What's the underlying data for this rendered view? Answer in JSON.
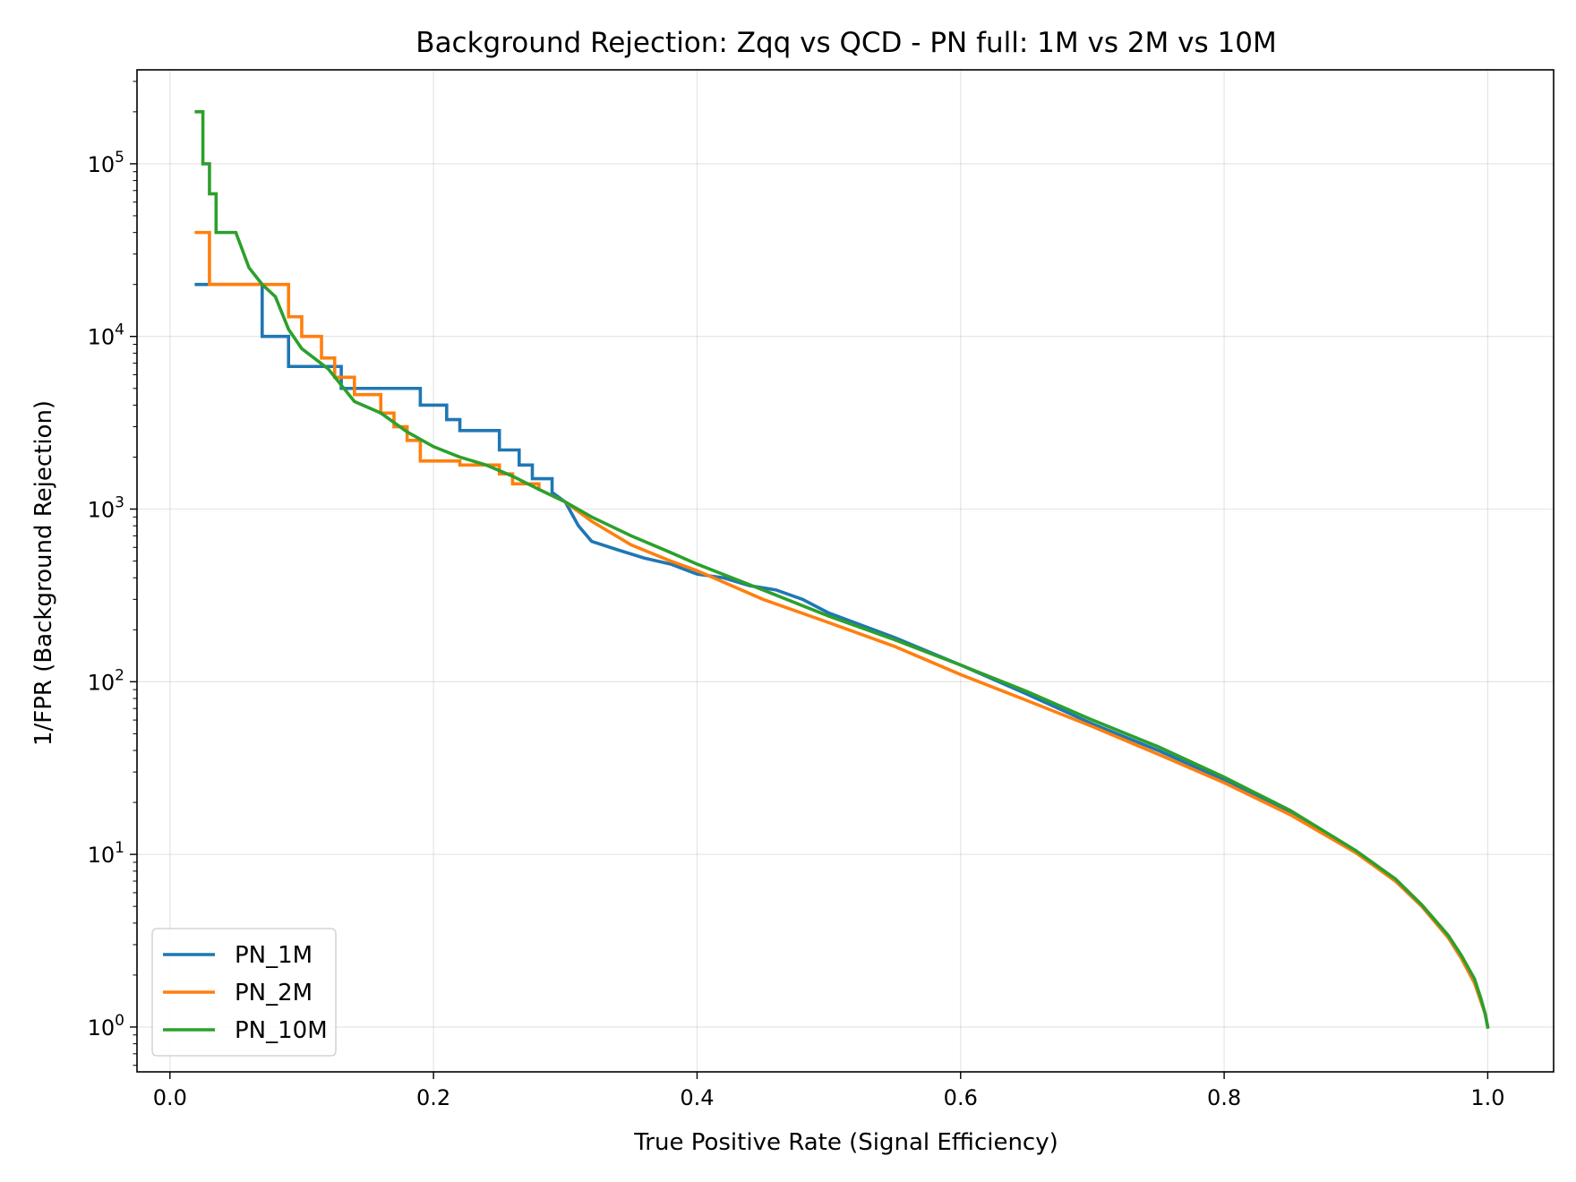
{
  "chart_data": {
    "type": "line",
    "title": "Background Rejection: Zqq vs QCD - PN full: 1M vs 2M vs 10M",
    "xlabel": "True Positive Rate (Signal Efficiency)",
    "ylabel": "1/FPR (Background Rejection)",
    "xlim": [
      -0.025,
      1.05
    ],
    "ylim": [
      0.55,
      350000
    ],
    "yscale": "log",
    "grid": true,
    "legend_position": "lower-left",
    "x_ticks": [
      0.0,
      0.2,
      0.4,
      0.6,
      0.8,
      1.0
    ],
    "x_tick_labels": [
      "0.0",
      "0.2",
      "0.4",
      "0.6",
      "0.8",
      "1.0"
    ],
    "y_ticks": [
      1,
      10,
      100,
      1000,
      10000,
      100000
    ],
    "y_tick_labels": [
      {
        "base": "10",
        "exp": "0"
      },
      {
        "base": "10",
        "exp": "1"
      },
      {
        "base": "10",
        "exp": "2"
      },
      {
        "base": "10",
        "exp": "3"
      },
      {
        "base": "10",
        "exp": "4"
      },
      {
        "base": "10",
        "exp": "5"
      }
    ],
    "series": [
      {
        "name": "PN_1M",
        "color": "#1f77b4",
        "x": [
          0.02,
          0.07,
          0.07,
          0.09,
          0.09,
          0.13,
          0.13,
          0.19,
          0.19,
          0.21,
          0.21,
          0.22,
          0.22,
          0.25,
          0.25,
          0.265,
          0.265,
          0.275,
          0.275,
          0.29,
          0.29,
          0.3,
          0.31,
          0.32,
          0.34,
          0.36,
          0.38,
          0.4,
          0.42,
          0.44,
          0.46,
          0.48,
          0.5,
          0.55,
          0.6,
          0.65,
          0.7,
          0.75,
          0.8,
          0.85,
          0.9,
          0.93,
          0.95,
          0.97,
          0.98,
          0.99,
          0.995,
          0.998,
          1.0
        ],
        "y": [
          20000,
          20000,
          10000,
          10000,
          6700,
          6700,
          5000,
          5000,
          4000,
          4000,
          3300,
          3300,
          2850,
          2850,
          2200,
          2200,
          1800,
          1800,
          1500,
          1500,
          1250,
          1100,
          800,
          650,
          580,
          520,
          480,
          420,
          400,
          360,
          340,
          300,
          250,
          180,
          125,
          85,
          57,
          40,
          27,
          17.5,
          10.3,
          7,
          5,
          3.3,
          2.5,
          1.8,
          1.4,
          1.2,
          1.0
        ]
      },
      {
        "name": "PN_2M",
        "color": "#ff7f0e",
        "x": [
          0.02,
          0.03,
          0.03,
          0.09,
          0.09,
          0.1,
          0.1,
          0.115,
          0.115,
          0.125,
          0.125,
          0.14,
          0.14,
          0.16,
          0.16,
          0.17,
          0.17,
          0.18,
          0.18,
          0.19,
          0.19,
          0.22,
          0.22,
          0.25,
          0.25,
          0.26,
          0.26,
          0.28,
          0.28,
          0.3,
          0.32,
          0.35,
          0.38,
          0.4,
          0.45,
          0.5,
          0.55,
          0.6,
          0.65,
          0.7,
          0.75,
          0.8,
          0.85,
          0.9,
          0.93,
          0.95,
          0.97,
          0.98,
          0.99,
          0.995,
          0.998,
          1.0
        ],
        "y": [
          40000,
          40000,
          20000,
          20000,
          13000,
          13000,
          10000,
          10000,
          7500,
          7500,
          5800,
          5800,
          4600,
          4600,
          3600,
          3600,
          3000,
          3000,
          2500,
          2500,
          1900,
          1900,
          1800,
          1800,
          1600,
          1600,
          1400,
          1400,
          1300,
          1100,
          850,
          620,
          500,
          440,
          300,
          220,
          160,
          110,
          78,
          55,
          38,
          26,
          17,
          10.2,
          7,
          5,
          3.3,
          2.5,
          1.8,
          1.4,
          1.2,
          1.0
        ]
      },
      {
        "name": "PN_10M",
        "color": "#2ca02c",
        "x": [
          0.02,
          0.025,
          0.025,
          0.03,
          0.03,
          0.035,
          0.035,
          0.045,
          0.05,
          0.06,
          0.07,
          0.08,
          0.09,
          0.1,
          0.12,
          0.14,
          0.16,
          0.18,
          0.2,
          0.22,
          0.24,
          0.26,
          0.28,
          0.3,
          0.32,
          0.35,
          0.38,
          0.4,
          0.45,
          0.5,
          0.55,
          0.6,
          0.65,
          0.7,
          0.75,
          0.8,
          0.85,
          0.9,
          0.93,
          0.95,
          0.97,
          0.98,
          0.99,
          0.995,
          0.998,
          1.0
        ],
        "y": [
          200000,
          200000,
          100000,
          100000,
          67000,
          67000,
          40000,
          40000,
          40000,
          25000,
          20000,
          17000,
          11000,
          8500,
          6500,
          4200,
          3600,
          2800,
          2300,
          2000,
          1800,
          1550,
          1300,
          1100,
          900,
          700,
          560,
          480,
          340,
          240,
          175,
          125,
          88,
          60,
          42,
          28,
          18,
          10.5,
          7.2,
          5.1,
          3.4,
          2.6,
          1.9,
          1.45,
          1.2,
          1.0
        ]
      }
    ]
  }
}
